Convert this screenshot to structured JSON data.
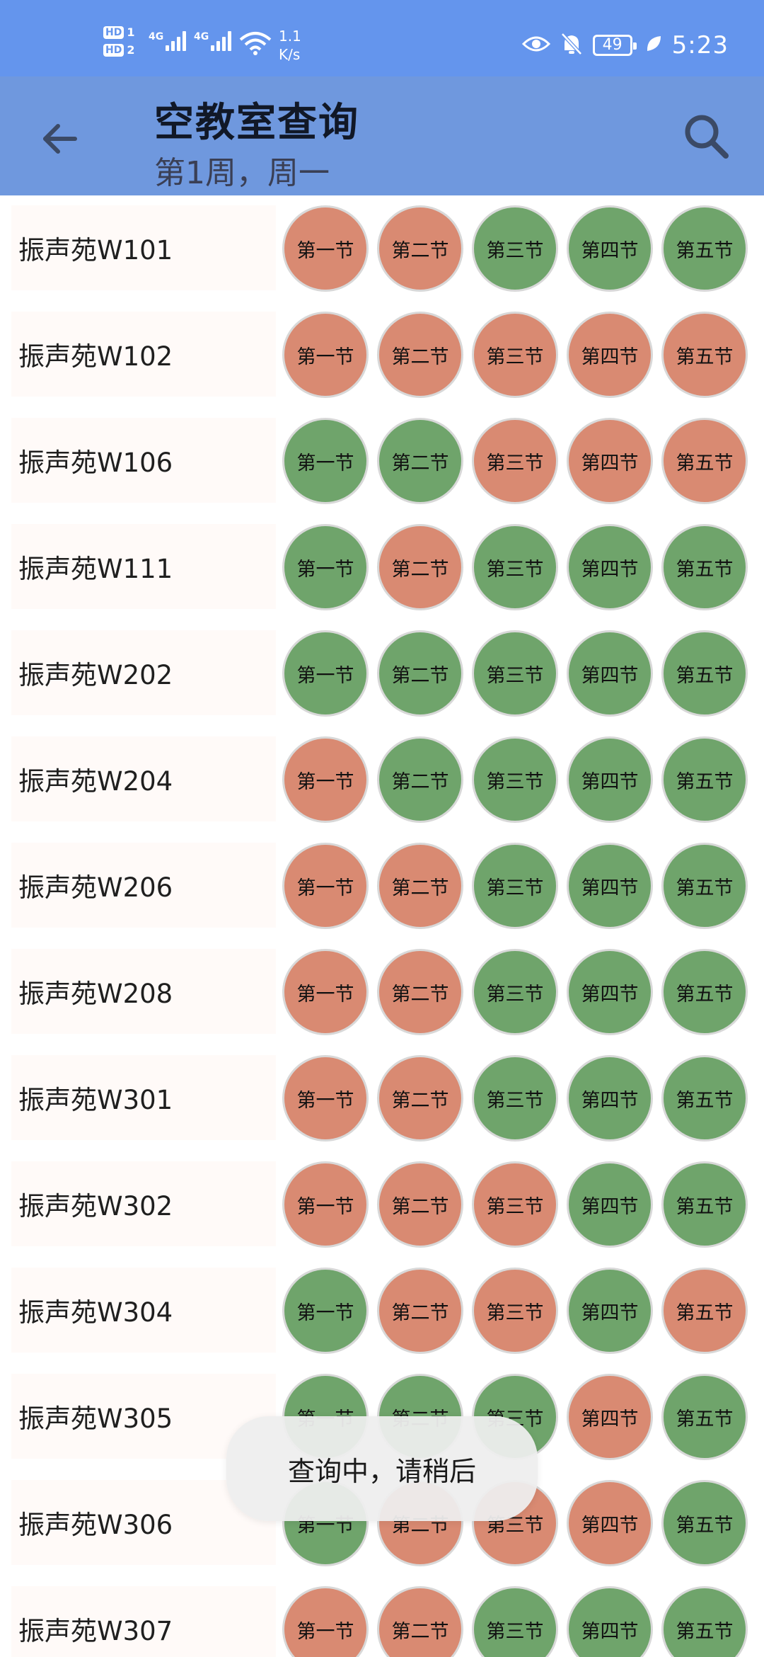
{
  "status_bar": {
    "sim1_badge": "HD",
    "sim1_num": "1",
    "sim2_badge": "HD",
    "sim2_num": "2",
    "network_1": "4G",
    "network_2": "4G",
    "speed_value": "1.1",
    "speed_unit": "K/s",
    "battery": "49",
    "time": "5:23",
    "icons": [
      "signal-icon",
      "wifi-icon",
      "eye-icon",
      "bell-off-icon",
      "battery-icon",
      "leaf-icon"
    ]
  },
  "header": {
    "back_icon": "arrow-left-icon",
    "title": "空教室查询",
    "subtitle": "第1周，周一",
    "search_icon": "search-icon"
  },
  "colors": {
    "status_bar": "#6495ed",
    "app_bar": "#6f98de",
    "occupied": "#d98a72",
    "free": "#6fa46b"
  },
  "period_labels": [
    "第一节",
    "第二节",
    "第三节",
    "第四节",
    "第五节"
  ],
  "rooms": [
    {
      "name": "振声苑W101",
      "status": [
        "occupied",
        "occupied",
        "free",
        "free",
        "free"
      ]
    },
    {
      "name": "振声苑W102",
      "status": [
        "occupied",
        "occupied",
        "occupied",
        "occupied",
        "occupied"
      ]
    },
    {
      "name": "振声苑W106",
      "status": [
        "free",
        "free",
        "occupied",
        "occupied",
        "occupied"
      ]
    },
    {
      "name": "振声苑W111",
      "status": [
        "free",
        "occupied",
        "free",
        "free",
        "free"
      ]
    },
    {
      "name": "振声苑W202",
      "status": [
        "free",
        "free",
        "free",
        "free",
        "free"
      ]
    },
    {
      "name": "振声苑W204",
      "status": [
        "occupied",
        "free",
        "free",
        "free",
        "free"
      ]
    },
    {
      "name": "振声苑W206",
      "status": [
        "occupied",
        "occupied",
        "free",
        "free",
        "free"
      ]
    },
    {
      "name": "振声苑W208",
      "status": [
        "occupied",
        "occupied",
        "free",
        "free",
        "free"
      ]
    },
    {
      "name": "振声苑W301",
      "status": [
        "occupied",
        "occupied",
        "free",
        "free",
        "free"
      ]
    },
    {
      "name": "振声苑W302",
      "status": [
        "occupied",
        "occupied",
        "occupied",
        "free",
        "free"
      ]
    },
    {
      "name": "振声苑W304",
      "status": [
        "free",
        "occupied",
        "occupied",
        "free",
        "occupied"
      ]
    },
    {
      "name": "振声苑W305",
      "status": [
        "free",
        "free",
        "free",
        "occupied",
        "free"
      ]
    },
    {
      "name": "振声苑W306",
      "status": [
        "free",
        "occupied",
        "occupied",
        "occupied",
        "free"
      ]
    },
    {
      "name": "振声苑W307",
      "status": [
        "occupied",
        "occupied",
        "free",
        "free",
        "free"
      ]
    }
  ],
  "toast": {
    "message": "查询中，请稍后"
  }
}
